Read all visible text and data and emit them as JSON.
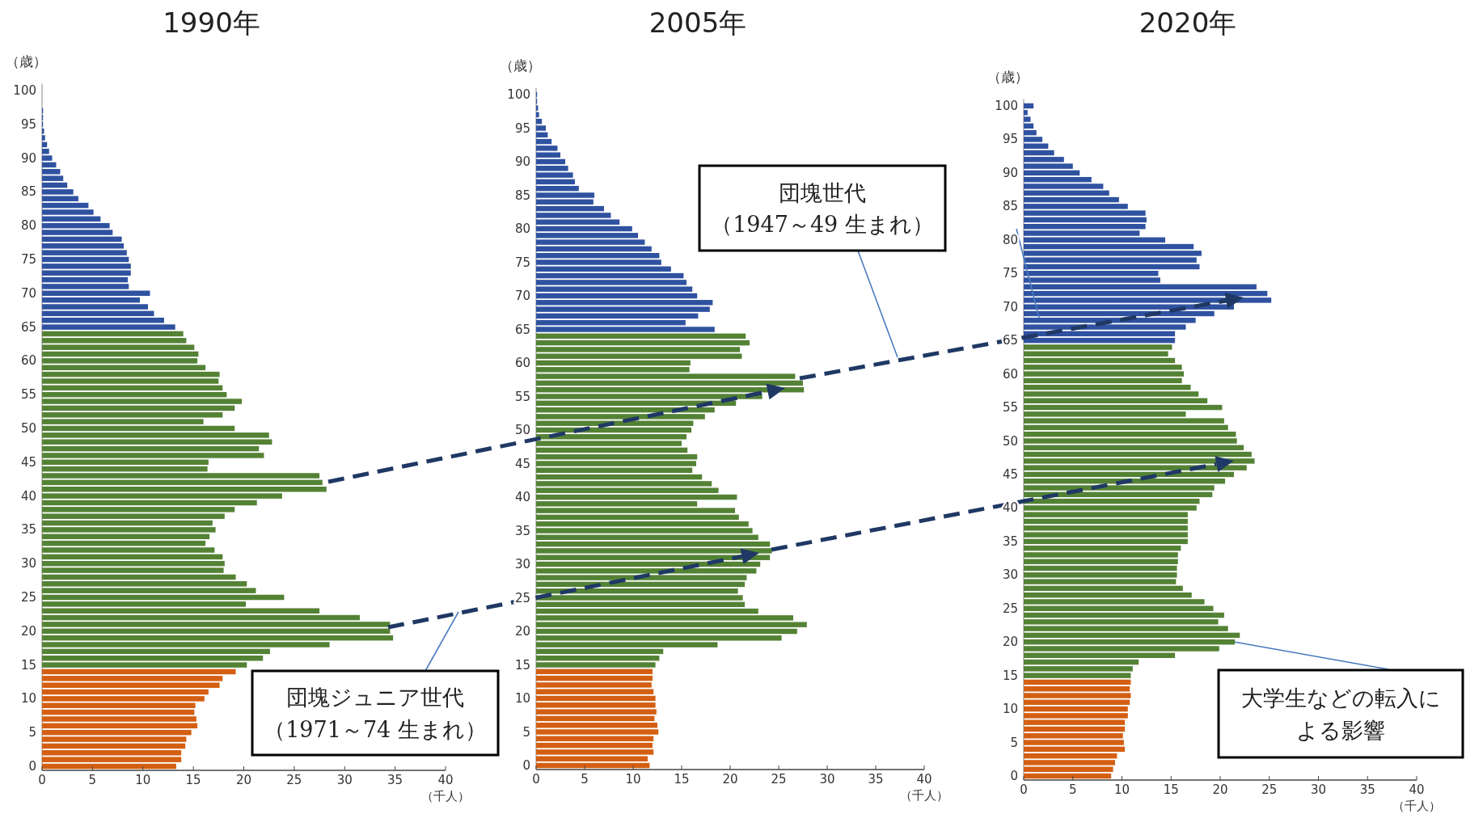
{
  "chart_data": [
    {
      "type": "bar",
      "orientation": "horizontal",
      "title": "1990年",
      "xlabel": "（千人）",
      "ylabel": "（歳）",
      "xlim": [
        0,
        40
      ],
      "xticks": [
        0,
        5,
        10,
        15,
        20,
        25,
        30,
        35,
        40
      ],
      "categories": [
        "100",
        null,
        null,
        null,
        null,
        "95",
        null,
        null,
        null,
        null,
        "90",
        null,
        null,
        null,
        null,
        "85",
        null,
        null,
        null,
        null,
        "80",
        null,
        null,
        null,
        null,
        "75",
        null,
        null,
        null,
        null,
        "70",
        null,
        null,
        null,
        null,
        "65",
        null,
        null,
        null,
        null,
        "60",
        null,
        null,
        null,
        null,
        "55",
        null,
        null,
        null,
        null,
        "50",
        null,
        null,
        null,
        null,
        "45",
        null,
        null,
        null,
        null,
        "40",
        null,
        null,
        null,
        null,
        "35",
        null,
        null,
        null,
        null,
        "30",
        null,
        null,
        null,
        null,
        "25",
        null,
        null,
        null,
        null,
        "20",
        null,
        null,
        null,
        null,
        "15",
        null,
        null,
        null,
        null,
        "10",
        null,
        null,
        null,
        null,
        "5",
        null,
        null,
        null,
        null,
        "0"
      ],
      "series": [
        {
          "color": "#2f52a0",
          "values": [
            null,
            null,
            null,
            0.1,
            0.1,
            0.1,
            0.2,
            0.3,
            0.5,
            0.7,
            1.0,
            1.4,
            1.8,
            2.1,
            2.5,
            3.1,
            3.6,
            4.6,
            5.1,
            5.8,
            6.7,
            7.0,
            7.9,
            8.1,
            8.4,
            8.6,
            8.8,
            8.8,
            8.5,
            8.6,
            10.7,
            9.7,
            10.5,
            11.1,
            12.1,
            13.2,
            null,
            null,
            null,
            null,
            null,
            null,
            null,
            null,
            null,
            null,
            null,
            null,
            null,
            null,
            null,
            null,
            null,
            null,
            null,
            null,
            null,
            null,
            null,
            null,
            null,
            null,
            null,
            null,
            null,
            null,
            null,
            null,
            null,
            null,
            null,
            null,
            null,
            null,
            null,
            null,
            null,
            null,
            null,
            null,
            null,
            null,
            null,
            null,
            null,
            null,
            null,
            null,
            null,
            null,
            null,
            null,
            null,
            null,
            null,
            null,
            null,
            null,
            null,
            null,
            null
          ]
        },
        {
          "color": "#548235",
          "values": [
            null,
            null,
            null,
            null,
            null,
            null,
            null,
            null,
            null,
            null,
            null,
            null,
            null,
            null,
            null,
            null,
            null,
            null,
            null,
            null,
            null,
            null,
            null,
            null,
            null,
            null,
            null,
            null,
            null,
            null,
            null,
            null,
            null,
            null,
            null,
            null,
            14.0,
            14.3,
            15.1,
            15.5,
            15.4,
            16.2,
            17.6,
            17.5,
            17.9,
            18.3,
            19.8,
            19.1,
            17.9,
            16.0,
            19.1,
            22.5,
            22.8,
            21.5,
            22.0,
            16.5,
            16.4,
            27.5,
            27.8,
            28.2,
            23.8,
            21.3,
            19.1,
            18.1,
            16.9,
            17.2,
            16.6,
            16.2,
            17.1,
            17.9,
            18.1,
            18.0,
            19.2,
            20.3,
            21.2,
            24.0,
            20.2,
            27.5,
            31.5,
            34.5,
            34.5,
            34.8,
            28.5,
            22.6,
            21.9,
            20.3,
            null,
            null,
            null,
            null,
            null,
            null,
            null,
            null,
            null,
            null,
            null,
            null,
            null,
            null,
            null
          ]
        },
        {
          "color": "#d45f12",
          "values": [
            null,
            null,
            null,
            null,
            null,
            null,
            null,
            null,
            null,
            null,
            null,
            null,
            null,
            null,
            null,
            null,
            null,
            null,
            null,
            null,
            null,
            null,
            null,
            null,
            null,
            null,
            null,
            null,
            null,
            null,
            null,
            null,
            null,
            null,
            null,
            null,
            null,
            null,
            null,
            null,
            null,
            null,
            null,
            null,
            null,
            null,
            null,
            null,
            null,
            null,
            null,
            null,
            null,
            null,
            null,
            null,
            null,
            null,
            null,
            null,
            null,
            null,
            null,
            null,
            null,
            null,
            null,
            null,
            null,
            null,
            null,
            null,
            null,
            null,
            null,
            null,
            null,
            null,
            null,
            null,
            null,
            null,
            null,
            null,
            null,
            null,
            19.2,
            17.9,
            17.6,
            16.5,
            16.1,
            15.2,
            15.1,
            15.3,
            15.4,
            14.8,
            14.3,
            14.2,
            13.8,
            13.8,
            13.3
          ]
        }
      ],
      "annotations": [
        "団塊ジュニア世代（1971～74 生まれ）"
      ]
    },
    {
      "type": "bar",
      "orientation": "horizontal",
      "title": "2005年",
      "xlabel": "（千人）",
      "ylabel": "（歳）",
      "xlim": [
        0,
        40
      ],
      "xticks": [
        0,
        5,
        10,
        15,
        20,
        25,
        30,
        35,
        40
      ],
      "categories": [
        "100",
        null,
        null,
        null,
        null,
        "95",
        null,
        null,
        null,
        null,
        "90",
        null,
        null,
        null,
        null,
        "85",
        null,
        null,
        null,
        null,
        "80",
        null,
        null,
        null,
        null,
        "75",
        null,
        null,
        null,
        null,
        "70",
        null,
        null,
        null,
        null,
        "65",
        null,
        null,
        null,
        null,
        "60",
        null,
        null,
        null,
        null,
        "55",
        null,
        null,
        null,
        null,
        "50",
        null,
        null,
        null,
        null,
        "45",
        null,
        null,
        null,
        null,
        "40",
        null,
        null,
        null,
        null,
        "35",
        null,
        null,
        null,
        null,
        "30",
        null,
        null,
        null,
        null,
        "25",
        null,
        null,
        null,
        null,
        "20",
        null,
        null,
        null,
        null,
        "15",
        null,
        null,
        null,
        null,
        "10",
        null,
        null,
        null,
        null,
        "5",
        null,
        null,
        null,
        null,
        "0"
      ],
      "series": [
        {
          "color": "#2f52a0",
          "values": [
            0.1,
            0.1,
            0.2,
            0.3,
            0.6,
            1.0,
            1.2,
            1.6,
            2.2,
            2.5,
            3.0,
            3.3,
            3.8,
            4.0,
            4.4,
            6.0,
            5.9,
            7.0,
            7.7,
            8.6,
            9.9,
            10.5,
            11.2,
            11.9,
            12.7,
            12.9,
            13.9,
            15.2,
            15.5,
            16.1,
            16.6,
            18.2,
            17.9,
            16.7,
            15.4,
            18.4,
            null,
            null,
            null,
            null,
            null,
            null,
            null,
            null,
            null,
            null,
            null,
            null,
            null,
            null,
            null,
            null,
            null,
            null,
            null,
            null,
            null,
            null,
            null,
            null,
            null,
            null,
            null,
            null,
            null,
            null,
            null,
            null,
            null,
            null,
            null,
            null,
            null,
            null,
            null,
            null,
            null,
            null,
            null,
            null,
            null,
            null,
            null,
            null,
            null,
            null,
            null,
            null,
            null,
            null,
            null,
            null,
            null,
            null,
            null,
            null,
            null,
            null,
            null,
            null,
            null
          ]
        },
        {
          "color": "#548235",
          "values": [
            null,
            null,
            null,
            null,
            null,
            null,
            null,
            null,
            null,
            null,
            null,
            null,
            null,
            null,
            null,
            null,
            null,
            null,
            null,
            null,
            null,
            null,
            null,
            null,
            null,
            null,
            null,
            null,
            null,
            null,
            null,
            null,
            null,
            null,
            null,
            null,
            21.6,
            22.0,
            21.0,
            21.2,
            15.9,
            15.8,
            26.7,
            27.5,
            27.6,
            23.3,
            20.6,
            18.4,
            17.4,
            16.2,
            16.0,
            15.5,
            15.0,
            15.6,
            16.6,
            16.5,
            16.1,
            17.1,
            18.1,
            18.8,
            20.7,
            16.6,
            20.5,
            20.9,
            21.9,
            22.3,
            22.9,
            24.1,
            24.3,
            24.1,
            23.1,
            22.7,
            21.7,
            21.5,
            20.8,
            21.3,
            21.5,
            22.9,
            26.5,
            27.9,
            26.9,
            25.3,
            18.7,
            13.1,
            12.7,
            12.3,
            null,
            null,
            null,
            null,
            null,
            null,
            null,
            null,
            null,
            null,
            null,
            null,
            null,
            null,
            null
          ]
        },
        {
          "color": "#d45f12",
          "values": [
            null,
            null,
            null,
            null,
            null,
            null,
            null,
            null,
            null,
            null,
            null,
            null,
            null,
            null,
            null,
            null,
            null,
            null,
            null,
            null,
            null,
            null,
            null,
            null,
            null,
            null,
            null,
            null,
            null,
            null,
            null,
            null,
            null,
            null,
            null,
            null,
            null,
            null,
            null,
            null,
            null,
            null,
            null,
            null,
            null,
            null,
            null,
            null,
            null,
            null,
            null,
            null,
            null,
            null,
            null,
            null,
            null,
            null,
            null,
            null,
            null,
            null,
            null,
            null,
            null,
            null,
            null,
            null,
            null,
            null,
            null,
            null,
            null,
            null,
            null,
            null,
            null,
            null,
            null,
            null,
            null,
            null,
            null,
            null,
            null,
            null,
            12.0,
            12.0,
            11.9,
            12.1,
            12.3,
            12.3,
            12.4,
            12.2,
            12.5,
            12.6,
            12.1,
            12.0,
            12.1,
            11.5,
            11.7
          ]
        }
      ],
      "annotations": [
        "団塊世代（1947～49 生まれ）"
      ]
    },
    {
      "type": "bar",
      "orientation": "horizontal",
      "title": "2020年",
      "xlabel": "（千人）",
      "ylabel": "（歳）",
      "xlim": [
        0,
        40
      ],
      "xticks": [
        0,
        5,
        10,
        15,
        20,
        25,
        30,
        35,
        40
      ],
      "categories": [
        "100",
        null,
        null,
        null,
        null,
        "95",
        null,
        null,
        null,
        null,
        "90",
        null,
        null,
        null,
        null,
        "85",
        null,
        null,
        null,
        null,
        "80",
        null,
        null,
        null,
        null,
        "75",
        null,
        null,
        null,
        null,
        "70",
        null,
        null,
        null,
        null,
        "65",
        null,
        null,
        null,
        null,
        "60",
        null,
        null,
        null,
        null,
        "55",
        null,
        null,
        null,
        null,
        "50",
        null,
        null,
        null,
        null,
        "45",
        null,
        null,
        null,
        null,
        "40",
        null,
        null,
        null,
        null,
        "35",
        null,
        null,
        null,
        null,
        "30",
        null,
        null,
        null,
        null,
        "25",
        null,
        null,
        null,
        null,
        "20",
        null,
        null,
        null,
        null,
        "15",
        null,
        null,
        null,
        null,
        "10",
        null,
        null,
        null,
        null,
        "5",
        null,
        null,
        null,
        null,
        "0"
      ],
      "series": [
        {
          "color": "#2f52a0",
          "values": [
            1.0,
            0.4,
            0.7,
            1.0,
            1.3,
            1.9,
            2.5,
            3.1,
            4.1,
            5.0,
            5.7,
            6.9,
            8.1,
            8.7,
            9.7,
            10.6,
            12.4,
            12.5,
            12.4,
            11.8,
            14.4,
            17.3,
            18.1,
            17.6,
            17.9,
            13.7,
            13.9,
            23.7,
            24.8,
            25.2,
            21.4,
            19.4,
            17.5,
            16.5,
            15.4,
            15.4,
            null,
            null,
            null,
            null,
            null,
            null,
            null,
            null,
            null,
            null,
            null,
            null,
            null,
            null,
            null,
            null,
            null,
            null,
            null,
            null,
            null,
            null,
            null,
            null,
            null,
            null,
            null,
            null,
            null,
            null,
            null,
            null,
            null,
            null,
            null,
            null,
            null,
            null,
            null,
            null,
            null,
            null,
            null,
            null,
            null,
            null,
            null,
            null,
            null,
            null,
            null,
            null,
            null,
            null,
            null,
            null,
            null,
            null,
            null,
            null,
            null,
            null,
            null,
            null,
            null
          ]
        },
        {
          "color": "#548235",
          "values": [
            null,
            null,
            null,
            null,
            null,
            null,
            null,
            null,
            null,
            null,
            null,
            null,
            null,
            null,
            null,
            null,
            null,
            null,
            null,
            null,
            null,
            null,
            null,
            null,
            null,
            null,
            null,
            null,
            null,
            null,
            null,
            null,
            null,
            null,
            null,
            null,
            15.1,
            14.7,
            15.4,
            16.1,
            16.3,
            16.1,
            17.0,
            17.8,
            18.7,
            20.2,
            16.5,
            20.4,
            20.8,
            21.6,
            21.7,
            22.4,
            23.2,
            23.5,
            22.7,
            21.4,
            20.5,
            19.4,
            19.2,
            17.9,
            17.6,
            16.7,
            16.7,
            16.7,
            16.7,
            16.7,
            16.0,
            15.7,
            15.7,
            15.6,
            15.6,
            15.5,
            16.2,
            17.1,
            18.4,
            19.3,
            20.4,
            19.8,
            20.8,
            22.0,
            21.5,
            19.9,
            15.4,
            11.7,
            11.1,
            10.9,
            null,
            null,
            null,
            null,
            null,
            null,
            null,
            null,
            null,
            null,
            null,
            null,
            null,
            null,
            null
          ]
        },
        {
          "color": "#d45f12",
          "values": [
            null,
            null,
            null,
            null,
            null,
            null,
            null,
            null,
            null,
            null,
            null,
            null,
            null,
            null,
            null,
            null,
            null,
            null,
            null,
            null,
            null,
            null,
            null,
            null,
            null,
            null,
            null,
            null,
            null,
            null,
            null,
            null,
            null,
            null,
            null,
            null,
            null,
            null,
            null,
            null,
            null,
            null,
            null,
            null,
            null,
            null,
            null,
            null,
            null,
            null,
            null,
            null,
            null,
            null,
            null,
            null,
            null,
            null,
            null,
            null,
            null,
            null,
            null,
            null,
            null,
            null,
            null,
            null,
            null,
            null,
            null,
            null,
            null,
            null,
            null,
            null,
            null,
            null,
            null,
            null,
            null,
            null,
            null,
            null,
            null,
            null,
            10.9,
            10.8,
            10.9,
            10.8,
            10.6,
            10.6,
            10.3,
            10.3,
            10.1,
            10.2,
            10.3,
            9.5,
            9.3,
            9.1,
            8.9
          ]
        }
      ],
      "annotations": [
        {
          "text": "大学生などの転入による影響",
          "x": 21.5,
          "y": "20"
        }
      ]
    }
  ]
}
